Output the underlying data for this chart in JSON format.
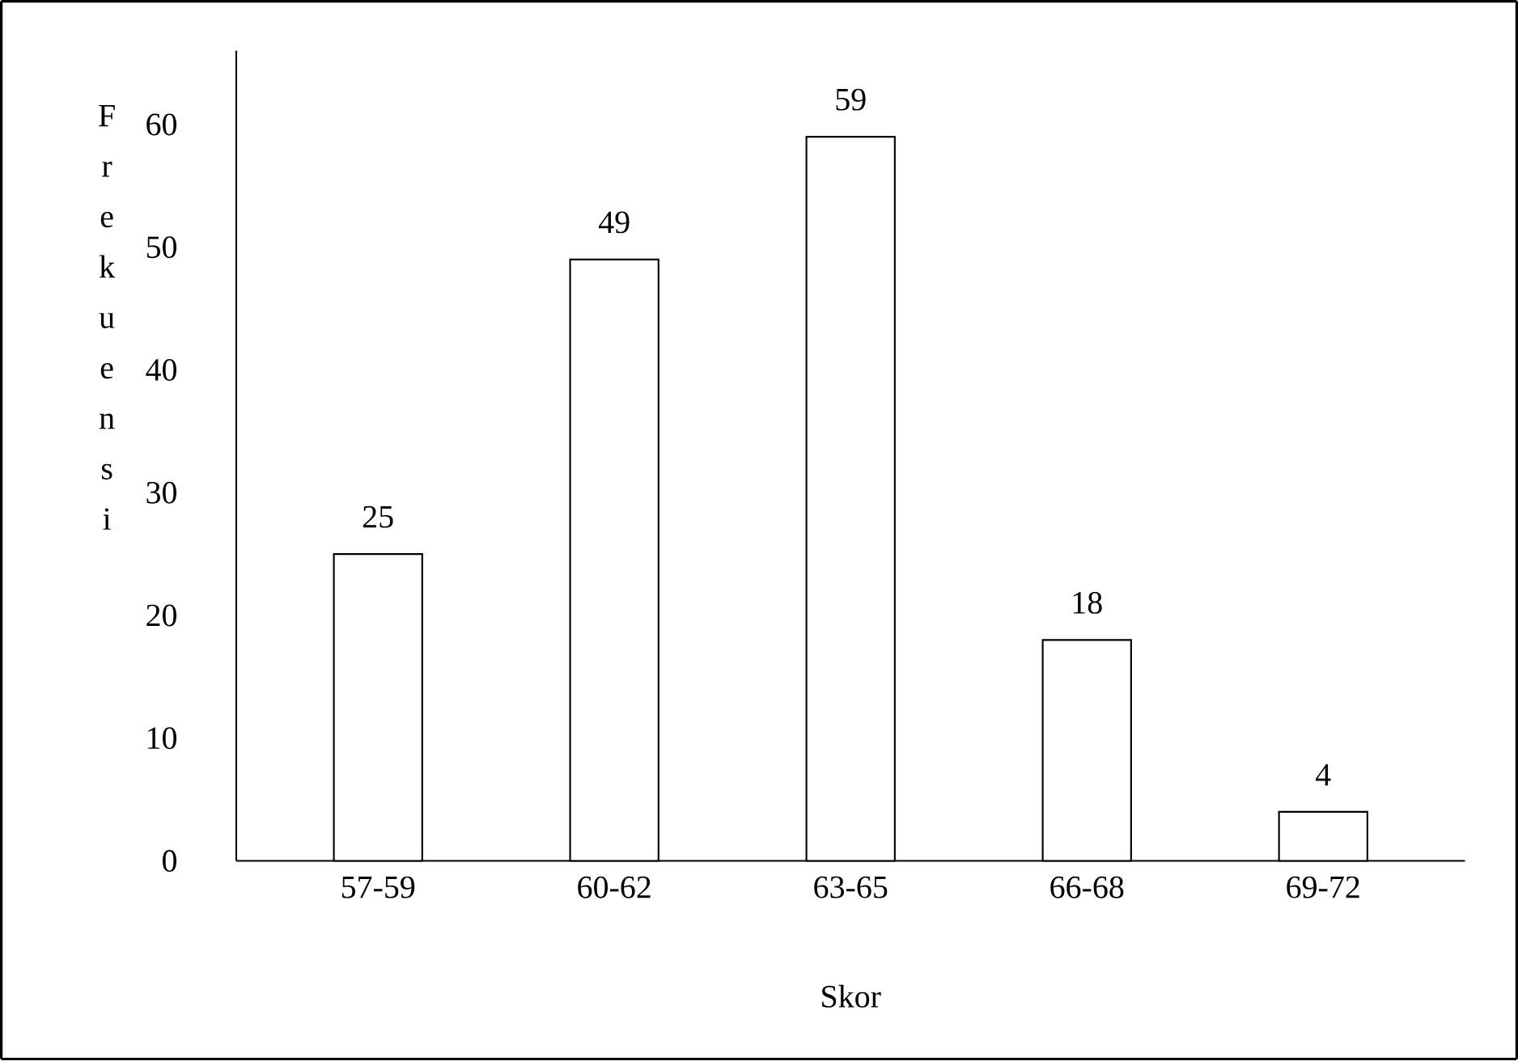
{
  "chart_data": {
    "type": "bar",
    "xlabel": "Skor",
    "ylabel": "Frekuensi",
    "categories": [
      "57-59",
      "60-62",
      "63-65",
      "66-68",
      "69-72"
    ],
    "values": [
      25,
      49,
      59,
      18,
      4
    ],
    "color": "#ffffff",
    "ylim": [
      0,
      66
    ],
    "yticks": [
      0,
      10,
      20,
      30,
      40,
      50,
      60
    ],
    "data_labels": true,
    "grid": false
  }
}
